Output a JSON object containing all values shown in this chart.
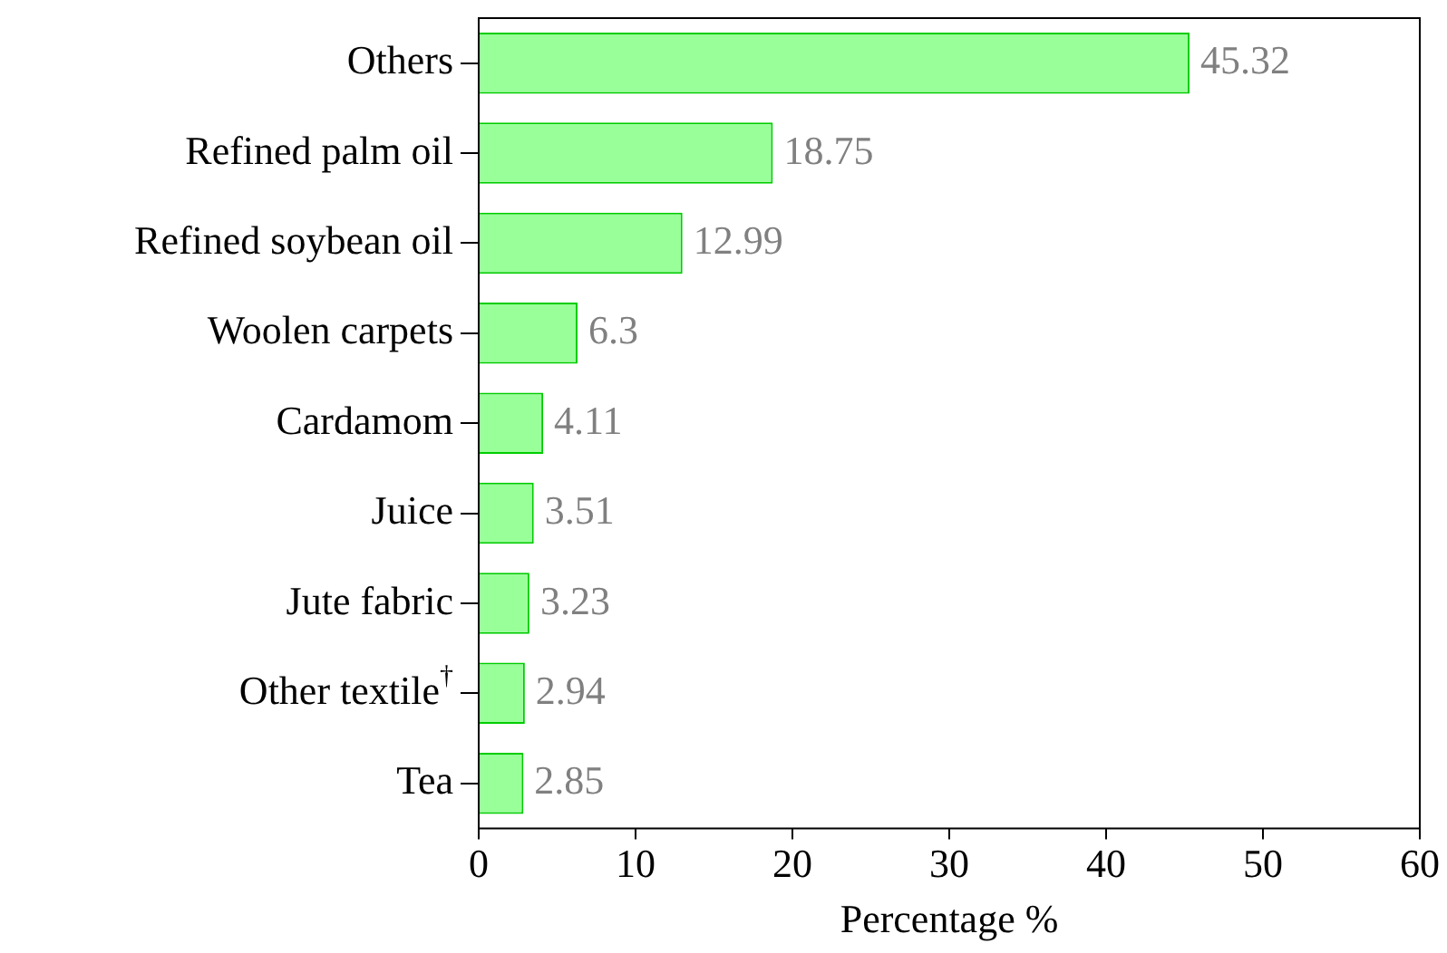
{
  "chart_data": {
    "type": "bar",
    "orientation": "horizontal",
    "xlabel": "Percentage %",
    "categories": [
      "Others",
      "Refined palm oil",
      "Refined soybean oil",
      "Woolen carpets",
      "Cardamom",
      "Juice",
      "Jute fabric",
      "Other textile$^{†}$",
      "Tea"
    ],
    "values": [
      45.32,
      18.75,
      12.99,
      6.3,
      4.11,
      3.51,
      3.23,
      2.94,
      2.85
    ],
    "color": "#99ff99",
    "data_labels": true,
    "xlim": [
      0,
      60
    ],
    "xticks": [
      0,
      10,
      20,
      30,
      40,
      50,
      60
    ],
    "grid": false,
    "legend": false
  }
}
